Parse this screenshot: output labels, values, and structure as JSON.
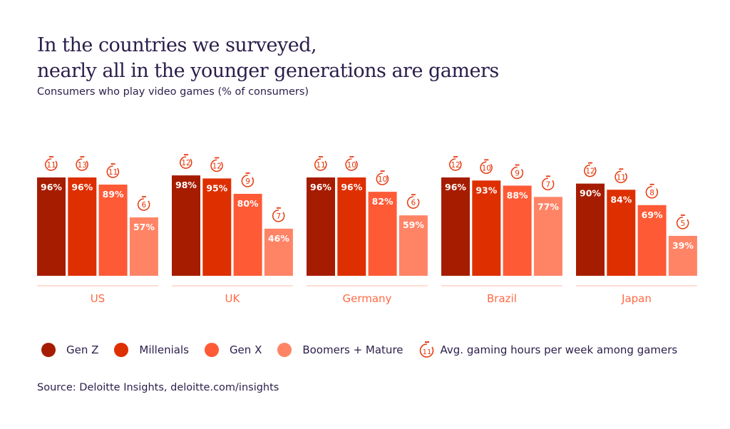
{
  "title_lines": [
    "In the countries we surveyed,",
    "nearly all in the younger generations are gamers"
  ],
  "subtitle": "Consumers who play video games (% of consumers)",
  "source": "Source: Deloitte Insights, deloitte.com/insights",
  "chart_data": {
    "type": "bar",
    "title": "In the countries we surveyed, nearly all in the younger generations are gamers",
    "subtitle": "Consumers who play video games (% of consumers)",
    "categories": [
      "US",
      "UK",
      "Germany",
      "Brazil",
      "Japan"
    ],
    "unit": "%",
    "ylim": [
      0,
      100
    ],
    "grid": false,
    "legend_position": "bottom",
    "series": [
      {
        "name": "Gen Z",
        "color": "#a61c00",
        "values": [
          96,
          98,
          96,
          96,
          90
        ],
        "hours": [
          11,
          12,
          11,
          12,
          12
        ]
      },
      {
        "name": "Millenials",
        "color": "#de2f00",
        "values": [
          96,
          95,
          96,
          93,
          84
        ],
        "hours": [
          13,
          12,
          10,
          10,
          11
        ]
      },
      {
        "name": "Gen X",
        "color": "#ff5a36",
        "values": [
          89,
          80,
          82,
          88,
          69
        ],
        "hours": [
          11,
          9,
          10,
          9,
          8
        ]
      },
      {
        "name": "Boomers + Mature",
        "color": "#ff8466",
        "values": [
          57,
          46,
          59,
          77,
          39
        ],
        "hours": [
          6,
          7,
          6,
          7,
          5
        ]
      }
    ],
    "hours_legend": {
      "label": "Avg. gaming hours per week among gamers",
      "icon": "stopwatch-icon",
      "sample": "11"
    },
    "category_label_color": "#ff6a45",
    "text_color": "#2b1d4a"
  }
}
